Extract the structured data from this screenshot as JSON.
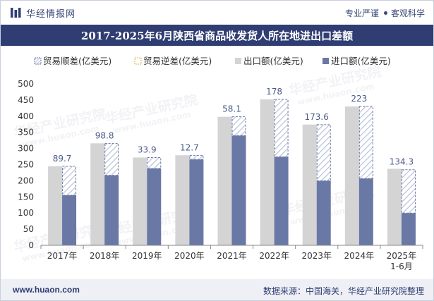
{
  "header": {
    "brand": "华经情报网",
    "tagline_left": "专业严谨",
    "tagline_right": "客观科学"
  },
  "footer": {
    "website": "www.huaon.com",
    "source": "数据来源：中国海关，华经产业研究院整理"
  },
  "watermark": {
    "text": "华经产业研究院",
    "url": "www.huaon.com"
  },
  "colors": {
    "title_bg": "#2f3d72",
    "export": "#d4d4d4",
    "import": "#6a78a6",
    "surplus_border": "#6a78a6",
    "hatch": "#b7c2d8",
    "label": "#4a5a8a"
  },
  "chart_data": {
    "type": "bar",
    "title": "2017-2025年6月陕西省商品收发货人所在地进出口差额",
    "categories": [
      "2017年",
      "2018年",
      "2019年",
      "2020年",
      "2021年",
      "2022年",
      "2023年",
      "2024年",
      "2025年\n1-6月"
    ],
    "ylim": [
      0,
      500
    ],
    "yticks": [
      0,
      50,
      100,
      150,
      200,
      250,
      300,
      350,
      400,
      450,
      500
    ],
    "grid": false,
    "legend_position": "top",
    "series": [
      {
        "name": "贸易顺差(亿美元)",
        "values": [
          89.7,
          98.8,
          33.9,
          12.7,
          58.1,
          178,
          173.6,
          223,
          134.3
        ]
      },
      {
        "name": "贸易逆差(亿美元)",
        "values": [
          0,
          0,
          0,
          0,
          0,
          0,
          0,
          0,
          0
        ]
      },
      {
        "name": "出口额(亿美元)",
        "values": [
          245,
          316,
          272,
          279,
          398,
          452,
          374,
          430,
          237
        ]
      },
      {
        "name": "进口额(亿美元)",
        "values": [
          155,
          217,
          238,
          266,
          340,
          274,
          200,
          207,
          100
        ]
      }
    ],
    "data_labels": [
      "89.7",
      "98.8",
      "33.9",
      "12.7",
      "58.1",
      "178",
      "173.6",
      "223",
      "134.3"
    ]
  }
}
